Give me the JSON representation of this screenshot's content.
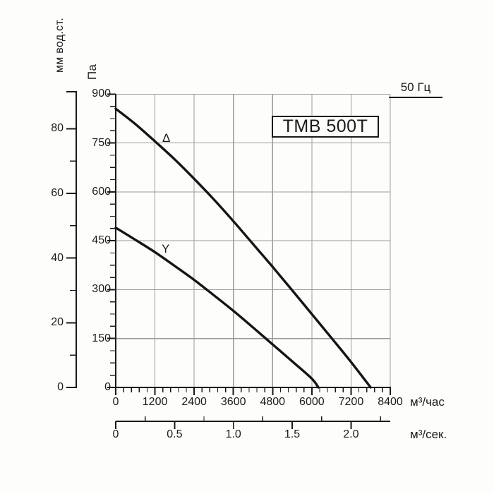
{
  "title_box": {
    "label": "TMB 500T"
  },
  "frequency": {
    "label": "50 Гц"
  },
  "chart_data": {
    "type": "line",
    "title": "TMB 500T",
    "annotations": [
      "50 Гц"
    ],
    "grid": true,
    "x_axis_primary": {
      "unit": "м³/час",
      "range": [
        0,
        8400
      ],
      "ticks": [
        0,
        1200,
        2400,
        3600,
        4800,
        6000,
        7200,
        8400
      ],
      "minor_step": 240
    },
    "x_axis_secondary": {
      "unit": "м³/сек.",
      "range": [
        0,
        2.33
      ],
      "ticks": [
        0,
        0.5,
        1.0,
        1.5,
        2.0
      ],
      "tick_labels": [
        "0",
        "0.5",
        "1.0",
        "1.5",
        "2.0"
      ],
      "minor_step": 0.25
    },
    "y_axis_primary": {
      "unit": "Па",
      "range": [
        0,
        900
      ],
      "ticks": [
        0,
        150,
        300,
        450,
        600,
        750,
        900
      ],
      "minor_step": 37.5
    },
    "y_axis_secondary": {
      "unit": "мм вод.ст.",
      "range": [
        0,
        91
      ],
      "ticks": [
        0,
        20,
        40,
        60,
        80
      ],
      "minor_step": 10
    },
    "series": [
      {
        "name": "Δ",
        "points": [
          [
            0,
            855
          ],
          [
            600,
            808
          ],
          [
            1200,
            755
          ],
          [
            1800,
            700
          ],
          [
            2400,
            640
          ],
          [
            3000,
            577
          ],
          [
            3600,
            510
          ],
          [
            4200,
            440
          ],
          [
            4800,
            370
          ],
          [
            5400,
            298
          ],
          [
            6000,
            225
          ],
          [
            6600,
            152
          ],
          [
            7200,
            78
          ],
          [
            7800,
            0
          ]
        ]
      },
      {
        "name": "Y",
        "points": [
          [
            0,
            490
          ],
          [
            600,
            453
          ],
          [
            1200,
            415
          ],
          [
            1800,
            373
          ],
          [
            2400,
            330
          ],
          [
            3000,
            283
          ],
          [
            3600,
            235
          ],
          [
            4200,
            184
          ],
          [
            4800,
            132
          ],
          [
            5400,
            80
          ],
          [
            6000,
            27
          ],
          [
            6200,
            0
          ]
        ]
      }
    ],
    "colors": {
      "curve": "#151515",
      "axis": "#1a1a1a",
      "grid": "#9a9a9a",
      "background": "#fdfdfb"
    }
  }
}
